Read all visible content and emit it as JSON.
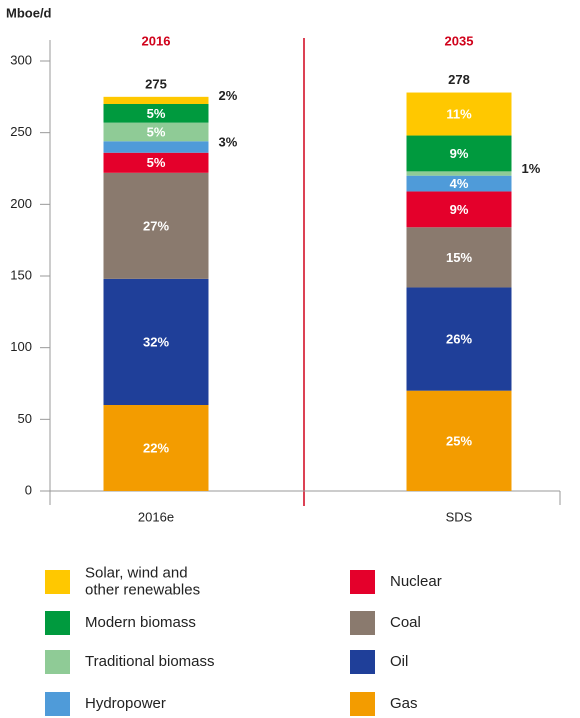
{
  "chart_data": {
    "type": "stacked_bar",
    "y_label": "Mboe/d",
    "headers": [
      "2016",
      "2035"
    ],
    "categories": [
      "2016e",
      "SDS"
    ],
    "totals": [
      275,
      278
    ],
    "ylim": [
      0,
      300
    ],
    "yticks": [
      0,
      50,
      100,
      150,
      200,
      250,
      300
    ],
    "series": [
      {
        "name": "Gas",
        "color": "#f39c00",
        "values": [
          60,
          70
        ],
        "share_labels": [
          "22%",
          "25%"
        ]
      },
      {
        "name": "Oil",
        "color": "#1f3f99",
        "values": [
          88,
          72
        ],
        "share_labels": [
          "32%",
          "26%"
        ]
      },
      {
        "name": "Coal",
        "color": "#8a7a6e",
        "values": [
          74,
          42
        ],
        "share_labels": [
          "27%",
          "15%"
        ]
      },
      {
        "name": "Nuclear",
        "color": "#e4002b",
        "values": [
          14,
          25
        ],
        "share_labels": [
          "5%",
          "9%"
        ]
      },
      {
        "name": "Hydropower",
        "color": "#4f9bd9",
        "values": [
          8,
          11
        ],
        "share_labels": [
          "3%",
          "4%"
        ]
      },
      {
        "name": "Traditional biomass",
        "color": "#8fcb96",
        "values": [
          13,
          3
        ],
        "share_labels": [
          "5%",
          "1%"
        ]
      },
      {
        "name": "Modern biomass",
        "color": "#009a3e",
        "values": [
          13,
          25
        ],
        "share_labels": [
          "5%",
          "9%"
        ]
      },
      {
        "name": "Solar, wind and other renewables",
        "color": "#ffc800",
        "values": [
          5,
          30
        ],
        "share_labels": [
          "2%",
          "11%"
        ]
      }
    ]
  }
}
